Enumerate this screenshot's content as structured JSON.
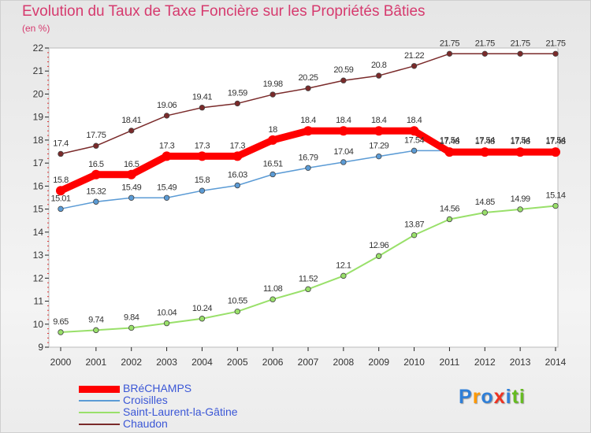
{
  "chart_data": {
    "type": "line",
    "title": "Evolution du Taux de Taxe Foncière sur les Propriétés Bâties",
    "subtitle": "(en %)",
    "xlabel": "",
    "ylabel": "(en %)",
    "x": [
      "2000",
      "2001",
      "2002",
      "2003",
      "2004",
      "2005",
      "2006",
      "2007",
      "2008",
      "2009",
      "2010",
      "2011",
      "2012",
      "2013",
      "2014"
    ],
    "ylim": [
      9,
      22
    ],
    "yticks": [
      "9",
      "10",
      "11",
      "12",
      "13",
      "14",
      "15",
      "16",
      "17",
      "18",
      "19",
      "20",
      "21",
      "22"
    ],
    "grid": false,
    "legend_position": "bottom-left",
    "series": [
      {
        "name": "BRéCHAMPS",
        "color": "#ff0000",
        "values": [
          15.8,
          16.5,
          16.5,
          17.3,
          17.3,
          17.3,
          18,
          18.4,
          18.4,
          18.4,
          18.4,
          17.48,
          17.48,
          17.48,
          17.48
        ],
        "labels": [
          "15.8",
          "16.5",
          "16.5",
          "17.3",
          "17.3",
          "17.3",
          "18",
          "18.4",
          "18.4",
          "18.4",
          "18.4",
          "17.48",
          "17.48",
          "17.48",
          "17.48"
        ]
      },
      {
        "name": "Croisilles",
        "color": "#5b9bd5",
        "values": [
          15.01,
          15.32,
          15.49,
          15.49,
          15.8,
          16.03,
          16.51,
          16.79,
          17.04,
          17.29,
          17.54,
          17.54,
          17.54,
          17.54,
          17.54
        ],
        "labels": [
          "15.01",
          "15.32",
          "15.49",
          "15.49",
          "15.8",
          "16.03",
          "16.51",
          "16.79",
          "17.04",
          "17.29",
          "17.54",
          "17.54",
          "17.54",
          "17.54",
          "17.54"
        ]
      },
      {
        "name": "Saint-Laurent-la-Gâtine",
        "color": "#99e06a",
        "values": [
          9.65,
          9.74,
          9.84,
          10.04,
          10.24,
          10.55,
          11.08,
          11.52,
          12.1,
          12.96,
          13.87,
          14.56,
          14.85,
          14.99,
          15.14
        ],
        "labels": [
          "9.65",
          "9.74",
          "9.84",
          "10.04",
          "10.24",
          "10.55",
          "11.08",
          "11.52",
          "12.1",
          "12.96",
          "13.87",
          "14.56",
          "14.85",
          "14.99",
          "15.14"
        ]
      },
      {
        "name": "Chaudon",
        "color": "#7a2a2a",
        "values": [
          17.4,
          17.75,
          18.41,
          19.06,
          19.41,
          19.59,
          19.98,
          20.25,
          20.59,
          20.8,
          21.22,
          21.75,
          21.75,
          21.75,
          21.75
        ],
        "labels": [
          "17.4",
          "17.75",
          "18.41",
          "19.06",
          "19.41",
          "19.59",
          "19.98",
          "20.25",
          "20.59",
          "20.8",
          "21.22",
          "21.75",
          "21.75",
          "21.75",
          "21.75"
        ]
      }
    ]
  },
  "logo": {
    "letters": [
      {
        "ch": "P",
        "color": "#2f7fd8"
      },
      {
        "ch": "r",
        "color": "#ff9900"
      },
      {
        "ch": "o",
        "color": "#2f7fd8"
      },
      {
        "ch": "x",
        "color": "#ee3322"
      },
      {
        "ch": "i",
        "color": "#2f7fd8"
      },
      {
        "ch": "t",
        "color": "#66bb22"
      },
      {
        "ch": "i",
        "color": "#66bb22"
      }
    ]
  }
}
